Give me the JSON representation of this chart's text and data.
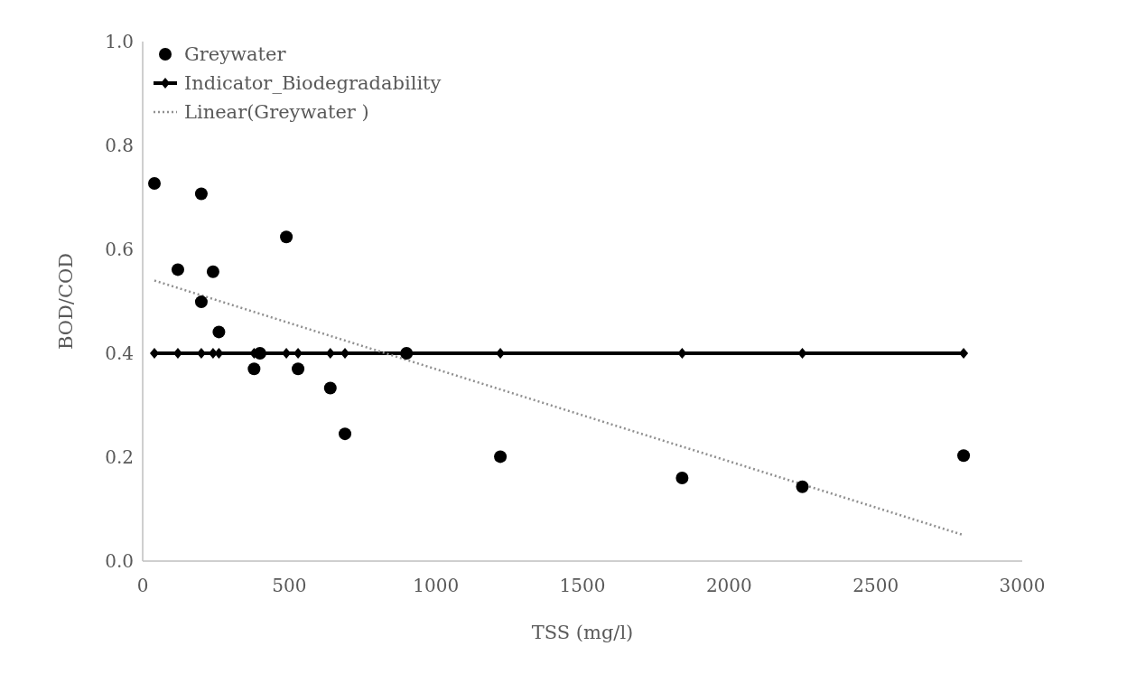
{
  "chart_data": {
    "type": "scatter",
    "xlabel": "TSS (mg/l)",
    "ylabel": "BOD/COD",
    "xlim": [
      0,
      3000
    ],
    "xticks": [
      0,
      500,
      1000,
      1500,
      2000,
      2500,
      3000
    ],
    "ylim": [
      0,
      1
    ],
    "yticks": [
      {
        "value": 0,
        "label": "0.0"
      },
      {
        "value": 0.2,
        "label": "0.2"
      },
      {
        "value": 0.4,
        "label": "0.4"
      },
      {
        "value": 0.6,
        "label": "0.6"
      },
      {
        "value": 0.8,
        "label": "0.8"
      },
      {
        "value": 1,
        "label": "1.0"
      }
    ],
    "grid": false,
    "legend": "top left",
    "series": [
      {
        "name": "Greywater",
        "marker": "circle",
        "color": "#000000",
        "x": [
          40,
          120,
          200,
          200,
          240,
          260,
          380,
          400,
          490,
          530,
          640,
          690,
          900,
          1220,
          1840,
          2250,
          2800
        ],
        "values": [
          0.727,
          0.561,
          0.707,
          0.499,
          0.557,
          0.441,
          0.37,
          0.4,
          0.624,
          0.37,
          0.333,
          0.245,
          0.4,
          0.201,
          0.16,
          0.143,
          0.203
        ]
      },
      {
        "name": "Indicator_Biodegradability",
        "type": "line",
        "marker": "diamond",
        "line_style": "solid",
        "color": "#000000",
        "x": [
          40,
          120,
          200,
          240,
          260,
          380,
          400,
          490,
          530,
          640,
          690,
          900,
          1220,
          1840,
          2250,
          2800
        ],
        "values": [
          0.4,
          0.4,
          0.4,
          0.4,
          0.4,
          0.4,
          0.4,
          0.4,
          0.4,
          0.4,
          0.4,
          0.4,
          0.4,
          0.4,
          0.4,
          0.4
        ]
      },
      {
        "name": "Linear(Greywater )",
        "type": "line",
        "marker": "none",
        "line_style": "dotted",
        "color": "#909090",
        "x": [
          40,
          2800
        ],
        "values": [
          0.54,
          0.05
        ]
      }
    ]
  }
}
